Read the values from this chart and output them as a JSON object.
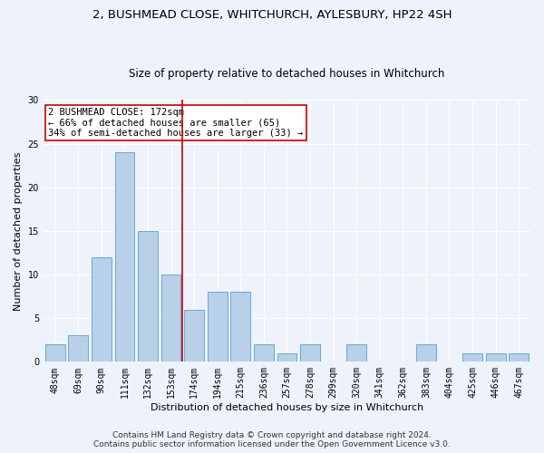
{
  "title_line1": "2, BUSHMEAD CLOSE, WHITCHURCH, AYLESBURY, HP22 4SH",
  "title_line2": "Size of property relative to detached houses in Whitchurch",
  "xlabel": "Distribution of detached houses by size in Whitchurch",
  "ylabel": "Number of detached properties",
  "categories": [
    "48sqm",
    "69sqm",
    "90sqm",
    "111sqm",
    "132sqm",
    "153sqm",
    "174sqm",
    "194sqm",
    "215sqm",
    "236sqm",
    "257sqm",
    "278sqm",
    "299sqm",
    "320sqm",
    "341sqm",
    "362sqm",
    "383sqm",
    "404sqm",
    "425sqm",
    "446sqm",
    "467sqm"
  ],
  "values": [
    2,
    3,
    12,
    24,
    15,
    10,
    6,
    8,
    8,
    2,
    1,
    2,
    0,
    2,
    0,
    0,
    2,
    0,
    1,
    1,
    1
  ],
  "bar_color": "#b8d0e8",
  "bar_edge_color": "#5a9fd4",
  "vline_x_index": 6,
  "vline_color": "#cc0000",
  "annotation_line1": "2 BUSHMEAD CLOSE: 172sqm",
  "annotation_line2": "← 66% of detached houses are smaller (65)",
  "annotation_line3": "34% of semi-detached houses are larger (33) →",
  "annotation_box_color": "white",
  "annotation_box_edge": "#cc0000",
  "ylim": [
    0,
    30
  ],
  "yticks": [
    0,
    5,
    10,
    15,
    20,
    25,
    30
  ],
  "footer_line1": "Contains HM Land Registry data © Crown copyright and database right 2024.",
  "footer_line2": "Contains public sector information licensed under the Open Government Licence v3.0.",
  "background_color": "#eef2fa",
  "grid_color": "#ffffff",
  "title_fontsize": 9.5,
  "subtitle_fontsize": 8.5,
  "ylabel_fontsize": 8,
  "xlabel_fontsize": 8,
  "tick_fontsize": 7,
  "annotation_fontsize": 7.5,
  "footer_fontsize": 6.5
}
